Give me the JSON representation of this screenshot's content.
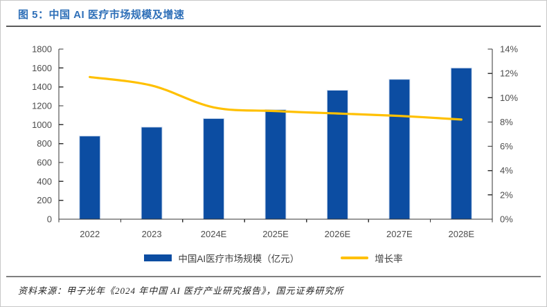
{
  "figure": {
    "title": "图 5：中国 AI 医疗市场规模及增速",
    "source_note": "资料来源：甲子光年《2024 年中国 AI 医疗产业研究报告》，国元证券研究所"
  },
  "legend": {
    "bar_label": "中国AI医疗市场规模（亿元）",
    "line_label": "增长率"
  },
  "colors": {
    "bar_fill": "#0C4DA2",
    "bar_edge": "#cfdcef",
    "line": "#FFC000",
    "title": "#2e6fb8",
    "axis_line": "#333333",
    "axis_text": "#4d4d4d",
    "title_rule": "#595959",
    "source_rule": "#7f7f7f"
  },
  "chart_data": {
    "type": "bar",
    "subtype": "bar+line-combo",
    "title": "中国 AI 医疗市场规模及增速",
    "categories": [
      "2022",
      "2023",
      "2024E",
      "2025E",
      "2026E",
      "2027E",
      "2028E"
    ],
    "series": [
      {
        "name": "中国AI医疗市场规模（亿元）",
        "type": "bar",
        "axis": "left",
        "values": [
          880,
          975,
          1065,
          1160,
          1365,
          1480,
          1600
        ]
      },
      {
        "name": "增长率",
        "type": "line",
        "axis": "right",
        "values": [
          11.7,
          11.0,
          9.2,
          8.9,
          8.7,
          8.5,
          8.2
        ]
      }
    ],
    "left_axis": {
      "min": 0,
      "max": 1800,
      "step": 200,
      "tick_labels": [
        "0",
        "200",
        "400",
        "600",
        "800",
        "1000",
        "1200",
        "1400",
        "1600",
        "1800"
      ]
    },
    "right_axis": {
      "min": 0,
      "max": 14,
      "step": 2,
      "suffix": "%",
      "tick_labels": [
        "0%",
        "2%",
        "4%",
        "6%",
        "8%",
        "10%",
        "12%",
        "14%"
      ]
    },
    "grid": false,
    "legend_position": "bottom"
  }
}
